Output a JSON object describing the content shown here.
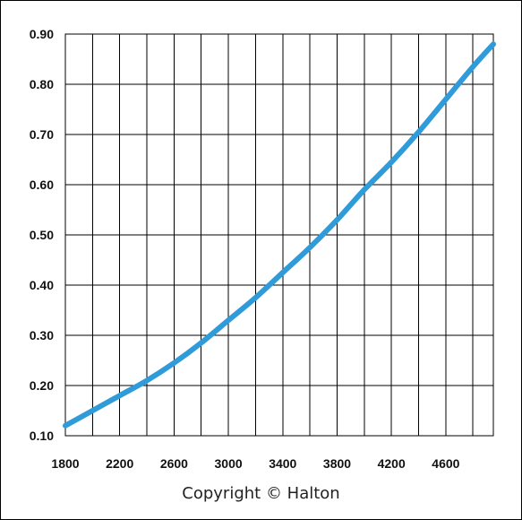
{
  "chart_data": {
    "type": "line",
    "title": "",
    "xlabel": "",
    "ylabel": "",
    "xlim": [
      1800,
      4950
    ],
    "ylim": [
      0.1,
      0.9
    ],
    "grid": true,
    "x_gridlines": [
      1800,
      2000,
      2200,
      2400,
      2600,
      2800,
      3000,
      3200,
      3400,
      3600,
      3800,
      4000,
      4200,
      4400,
      4600,
      4800
    ],
    "y_gridlines": [
      0.1,
      0.2,
      0.3,
      0.4,
      0.5,
      0.6,
      0.7,
      0.8,
      0.9
    ],
    "x_tick_labels": [
      "1800",
      "2200",
      "2600",
      "3000",
      "3400",
      "3800",
      "4200",
      "4600"
    ],
    "x_tick_values": [
      1800,
      2200,
      2600,
      3000,
      3400,
      3800,
      4200,
      4600
    ],
    "y_tick_labels": [
      "0.10",
      "0.20",
      "0.30",
      "0.40",
      "0.50",
      "0.60",
      "0.70",
      "0.80",
      "0.90"
    ],
    "y_tick_values": [
      0.1,
      0.2,
      0.3,
      0.4,
      0.5,
      0.6,
      0.7,
      0.8,
      0.9
    ],
    "series": [
      {
        "color": "#2f9bd8",
        "x": [
          1800,
          2000,
          2200,
          2400,
          2600,
          2800,
          3000,
          3200,
          3400,
          3600,
          3800,
          4000,
          4200,
          4400,
          4600,
          4800,
          4950
        ],
        "y": [
          0.12,
          0.15,
          0.18,
          0.21,
          0.245,
          0.285,
          0.33,
          0.375,
          0.425,
          0.475,
          0.53,
          0.59,
          0.645,
          0.705,
          0.77,
          0.835,
          0.88
        ]
      }
    ]
  },
  "footer": {
    "copyright": "Copyright © Halton"
  }
}
